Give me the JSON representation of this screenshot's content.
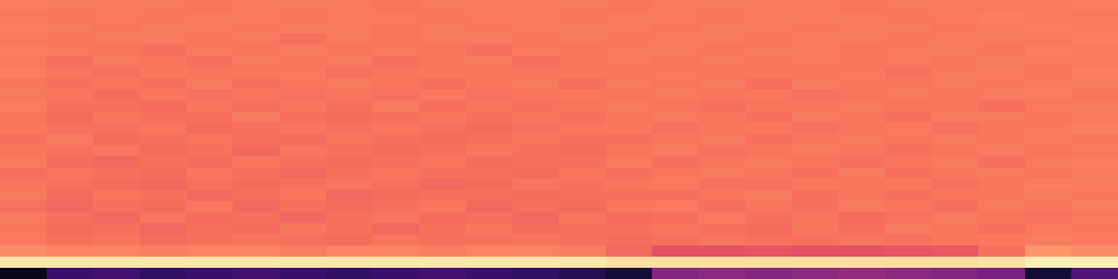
{
  "chart_data": {
    "type": "heatmap",
    "tick_labels": false,
    "grid": false,
    "xlim": [
      -0.5,
      23.5
    ],
    "ylim": [
      -0.5,
      24.5
    ],
    "zlim": [
      0,
      1
    ],
    "z": [
      [
        0.05,
        0.2,
        0.22,
        0.18,
        0.2,
        0.22,
        0.2,
        0.18,
        0.2,
        0.22,
        0.2,
        0.18,
        0.15,
        0.1,
        0.38,
        0.4,
        0.38,
        0.4,
        0.42,
        0.4,
        0.38,
        0.35,
        0.1,
        0.25
      ],
      [
        0.95,
        0.95,
        0.95,
        0.95,
        0.95,
        0.95,
        0.95,
        0.95,
        0.95,
        0.95,
        0.95,
        0.95,
        0.95,
        0.93,
        0.93,
        0.93,
        0.93,
        0.93,
        0.93,
        0.93,
        0.93,
        0.94,
        0.97,
        0.97
      ],
      [
        0.76,
        0.74,
        0.74,
        0.73,
        0.74,
        0.74,
        0.73,
        0.74,
        0.74,
        0.73,
        0.74,
        0.74,
        0.73,
        0.68,
        0.62,
        0.62,
        0.63,
        0.62,
        0.62,
        0.63,
        0.64,
        0.7,
        0.78,
        0.76
      ],
      [
        0.72,
        0.7,
        0.71,
        0.69,
        0.7,
        0.71,
        0.7,
        0.69,
        0.71,
        0.7,
        0.7,
        0.71,
        0.7,
        0.69,
        0.7,
        0.71,
        0.7,
        0.7,
        0.71,
        0.7,
        0.71,
        0.72,
        0.73,
        0.72
      ],
      [
        0.71,
        0.69,
        0.7,
        0.68,
        0.7,
        0.69,
        0.71,
        0.7,
        0.68,
        0.7,
        0.71,
        0.69,
        0.7,
        0.7,
        0.71,
        0.7,
        0.69,
        0.71,
        0.7,
        0.72,
        0.71,
        0.7,
        0.72,
        0.71
      ],
      [
        0.72,
        0.7,
        0.68,
        0.71,
        0.69,
        0.7,
        0.68,
        0.7,
        0.71,
        0.69,
        0.7,
        0.68,
        0.71,
        0.69,
        0.7,
        0.72,
        0.7,
        0.71,
        0.69,
        0.7,
        0.72,
        0.71,
        0.7,
        0.72
      ],
      [
        0.7,
        0.68,
        0.7,
        0.69,
        0.71,
        0.68,
        0.7,
        0.69,
        0.7,
        0.71,
        0.68,
        0.7,
        0.69,
        0.71,
        0.72,
        0.7,
        0.71,
        0.7,
        0.72,
        0.71,
        0.7,
        0.72,
        0.71,
        0.73
      ],
      [
        0.72,
        0.69,
        0.71,
        0.7,
        0.68,
        0.7,
        0.71,
        0.68,
        0.69,
        0.7,
        0.7,
        0.69,
        0.7,
        0.7,
        0.7,
        0.71,
        0.72,
        0.7,
        0.71,
        0.7,
        0.71,
        0.71,
        0.72,
        0.71
      ],
      [
        0.71,
        0.7,
        0.69,
        0.68,
        0.7,
        0.69,
        0.7,
        0.71,
        0.7,
        0.68,
        0.69,
        0.71,
        0.7,
        0.71,
        0.72,
        0.7,
        0.7,
        0.72,
        0.71,
        0.72,
        0.7,
        0.71,
        0.73,
        0.72
      ],
      [
        0.7,
        0.71,
        0.7,
        0.69,
        0.71,
        0.7,
        0.68,
        0.7,
        0.71,
        0.7,
        0.7,
        0.69,
        0.71,
        0.7,
        0.71,
        0.72,
        0.71,
        0.7,
        0.72,
        0.7,
        0.71,
        0.72,
        0.71,
        0.72
      ],
      [
        0.72,
        0.69,
        0.68,
        0.7,
        0.69,
        0.71,
        0.7,
        0.69,
        0.7,
        0.71,
        0.69,
        0.7,
        0.7,
        0.72,
        0.7,
        0.71,
        0.72,
        0.71,
        0.7,
        0.71,
        0.72,
        0.7,
        0.72,
        0.73
      ],
      [
        0.71,
        0.7,
        0.71,
        0.69,
        0.7,
        0.68,
        0.71,
        0.7,
        0.69,
        0.7,
        0.71,
        0.7,
        0.69,
        0.71,
        0.72,
        0.7,
        0.71,
        0.72,
        0.71,
        0.7,
        0.71,
        0.72,
        0.71,
        0.72
      ],
      [
        0.7,
        0.72,
        0.69,
        0.7,
        0.71,
        0.7,
        0.69,
        0.71,
        0.7,
        0.69,
        0.7,
        0.71,
        0.7,
        0.7,
        0.71,
        0.72,
        0.7,
        0.71,
        0.72,
        0.71,
        0.72,
        0.71,
        0.72,
        0.71
      ],
      [
        0.72,
        0.7,
        0.7,
        0.71,
        0.69,
        0.7,
        0.71,
        0.7,
        0.71,
        0.7,
        0.69,
        0.7,
        0.71,
        0.72,
        0.7,
        0.71,
        0.72,
        0.7,
        0.71,
        0.72,
        0.7,
        0.71,
        0.72,
        0.73
      ],
      [
        0.71,
        0.69,
        0.71,
        0.7,
        0.7,
        0.72,
        0.7,
        0.69,
        0.7,
        0.71,
        0.7,
        0.71,
        0.7,
        0.71,
        0.72,
        0.71,
        0.7,
        0.72,
        0.71,
        0.7,
        0.72,
        0.72,
        0.71,
        0.72
      ],
      [
        0.73,
        0.7,
        0.7,
        0.69,
        0.71,
        0.7,
        0.71,
        0.7,
        0.72,
        0.7,
        0.71,
        0.7,
        0.71,
        0.72,
        0.71,
        0.7,
        0.71,
        0.71,
        0.72,
        0.71,
        0.71,
        0.7,
        0.72,
        0.72
      ],
      [
        0.72,
        0.71,
        0.69,
        0.71,
        0.7,
        0.71,
        0.7,
        0.71,
        0.7,
        0.72,
        0.7,
        0.71,
        0.72,
        0.71,
        0.72,
        0.71,
        0.72,
        0.7,
        0.71,
        0.72,
        0.71,
        0.72,
        0.73,
        0.71
      ],
      [
        0.71,
        0.7,
        0.71,
        0.7,
        0.72,
        0.7,
        0.71,
        0.72,
        0.71,
        0.7,
        0.71,
        0.72,
        0.7,
        0.72,
        0.71,
        0.72,
        0.7,
        0.72,
        0.71,
        0.71,
        0.72,
        0.71,
        0.72,
        0.72
      ],
      [
        0.73,
        0.71,
        0.7,
        0.72,
        0.71,
        0.71,
        0.72,
        0.7,
        0.71,
        0.72,
        0.71,
        0.71,
        0.72,
        0.71,
        0.72,
        0.71,
        0.72,
        0.71,
        0.72,
        0.7,
        0.72,
        0.72,
        0.71,
        0.73
      ],
      [
        0.72,
        0.7,
        0.72,
        0.71,
        0.7,
        0.72,
        0.71,
        0.72,
        0.7,
        0.71,
        0.72,
        0.7,
        0.71,
        0.72,
        0.71,
        0.72,
        0.71,
        0.72,
        0.71,
        0.72,
        0.71,
        0.72,
        0.72,
        0.72
      ],
      [
        0.73,
        0.72,
        0.71,
        0.7,
        0.72,
        0.71,
        0.72,
        0.71,
        0.72,
        0.71,
        0.7,
        0.72,
        0.71,
        0.72,
        0.72,
        0.71,
        0.72,
        0.72,
        0.71,
        0.72,
        0.72,
        0.71,
        0.73,
        0.72
      ],
      [
        0.72,
        0.71,
        0.72,
        0.72,
        0.71,
        0.72,
        0.7,
        0.72,
        0.71,
        0.72,
        0.72,
        0.71,
        0.72,
        0.71,
        0.72,
        0.72,
        0.71,
        0.72,
        0.72,
        0.71,
        0.72,
        0.72,
        0.72,
        0.73
      ],
      [
        0.73,
        0.72,
        0.71,
        0.72,
        0.72,
        0.71,
        0.72,
        0.72,
        0.71,
        0.72,
        0.71,
        0.72,
        0.72,
        0.72,
        0.71,
        0.72,
        0.72,
        0.71,
        0.72,
        0.72,
        0.71,
        0.72,
        0.73,
        0.72
      ],
      [
        0.72,
        0.71,
        0.72,
        0.71,
        0.72,
        0.72,
        0.71,
        0.72,
        0.72,
        0.71,
        0.72,
        0.72,
        0.71,
        0.72,
        0.72,
        0.71,
        0.72,
        0.72,
        0.72,
        0.71,
        0.72,
        0.73,
        0.72,
        0.72
      ],
      [
        0.73,
        0.72,
        0.72,
        0.72,
        0.71,
        0.72,
        0.72,
        0.72,
        0.71,
        0.72,
        0.72,
        0.72,
        0.72,
        0.71,
        0.72,
        0.72,
        0.72,
        0.72,
        0.71,
        0.72,
        0.72,
        0.72,
        0.72,
        0.73
      ]
    ]
  }
}
